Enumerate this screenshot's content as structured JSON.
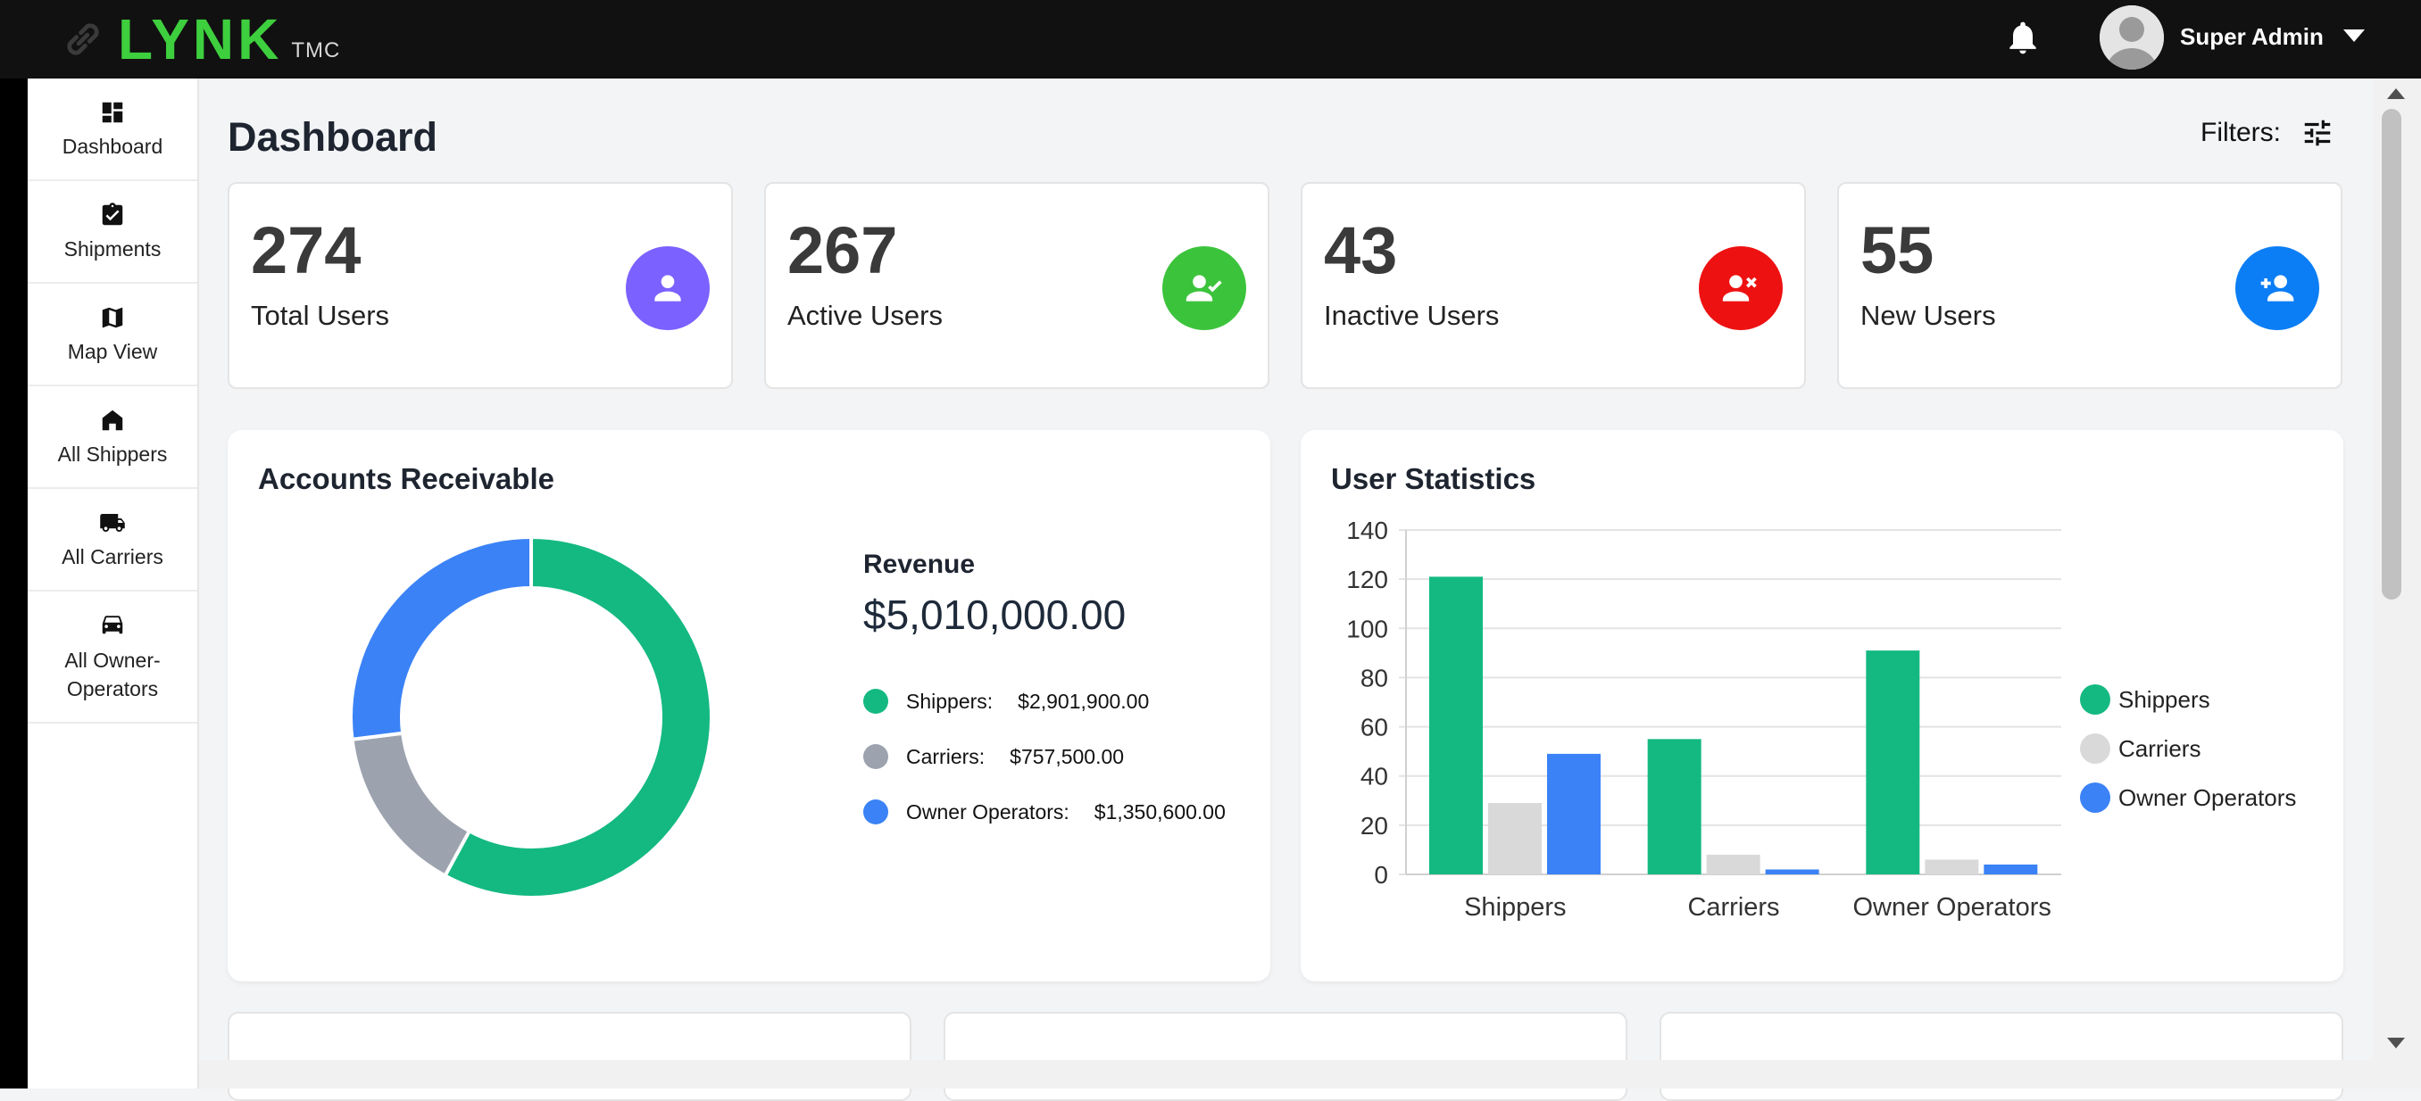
{
  "header": {
    "logo_text": "LYNK",
    "logo_sub": "TMC",
    "username": "Super Admin"
  },
  "sidebar": {
    "items": [
      {
        "label": "Dashboard",
        "icon": "dashboard-icon"
      },
      {
        "label": "Shipments",
        "icon": "clipboard-check-icon"
      },
      {
        "label": "Map View",
        "icon": "map-icon"
      },
      {
        "label": "All Shippers",
        "icon": "home-icon"
      },
      {
        "label": "All Carriers",
        "icon": "truck-icon"
      },
      {
        "label": "All Owner-\nOperators",
        "icon": "car-icon"
      }
    ]
  },
  "page": {
    "title": "Dashboard",
    "filters_label": "Filters:"
  },
  "stats": [
    {
      "value": "274",
      "label": "Total Users",
      "color": "#7b61ff",
      "icon": "person-icon"
    },
    {
      "value": "267",
      "label": "Active Users",
      "color": "#3cc33c",
      "icon": "person-check-icon"
    },
    {
      "value": "43",
      "label": "Inactive Users",
      "color": "#ee1111",
      "icon": "person-remove-icon"
    },
    {
      "value": "55",
      "label": "New Users",
      "color": "#0b7ef5",
      "icon": "person-add-icon"
    }
  ],
  "accounts_receivable": {
    "title": "Accounts Receivable",
    "revenue_label": "Revenue",
    "revenue_total": "$5,010,000.00",
    "breakdown": [
      {
        "label": "Shippers:",
        "value": "$2,901,900.00",
        "color": "#14b981"
      },
      {
        "label": "Carriers:",
        "value": "$757,500.00",
        "color": "#9ca3af"
      },
      {
        "label": "Owner Operators:",
        "value": "$1,350,600.00",
        "color": "#3b82f6"
      }
    ]
  },
  "user_statistics": {
    "title": "User Statistics"
  },
  "chart_data": [
    {
      "type": "pie",
      "title": "Accounts Receivable",
      "categories": [
        "Shippers",
        "Carriers",
        "Owner Operators"
      ],
      "values": [
        2901900,
        757500,
        1350600
      ],
      "colors": [
        "#14b981",
        "#9ca3af",
        "#3b82f6"
      ],
      "donut": true
    },
    {
      "type": "bar",
      "title": "User Statistics",
      "categories": [
        "Shippers",
        "Carriers",
        "Owner Operators"
      ],
      "series": [
        {
          "name": "Shippers",
          "color": "#14b981",
          "values": [
            121,
            55,
            91
          ]
        },
        {
          "name": "Carriers",
          "color": "#d9d9d9",
          "values": [
            29,
            8,
            6
          ]
        },
        {
          "name": "Owner Operators",
          "color": "#3b82f6",
          "values": [
            49,
            2,
            4
          ]
        }
      ],
      "ylim": [
        0,
        140
      ],
      "yticks": [
        0,
        20,
        40,
        60,
        80,
        100,
        120,
        140
      ],
      "grid": true,
      "legend": "right"
    }
  ]
}
